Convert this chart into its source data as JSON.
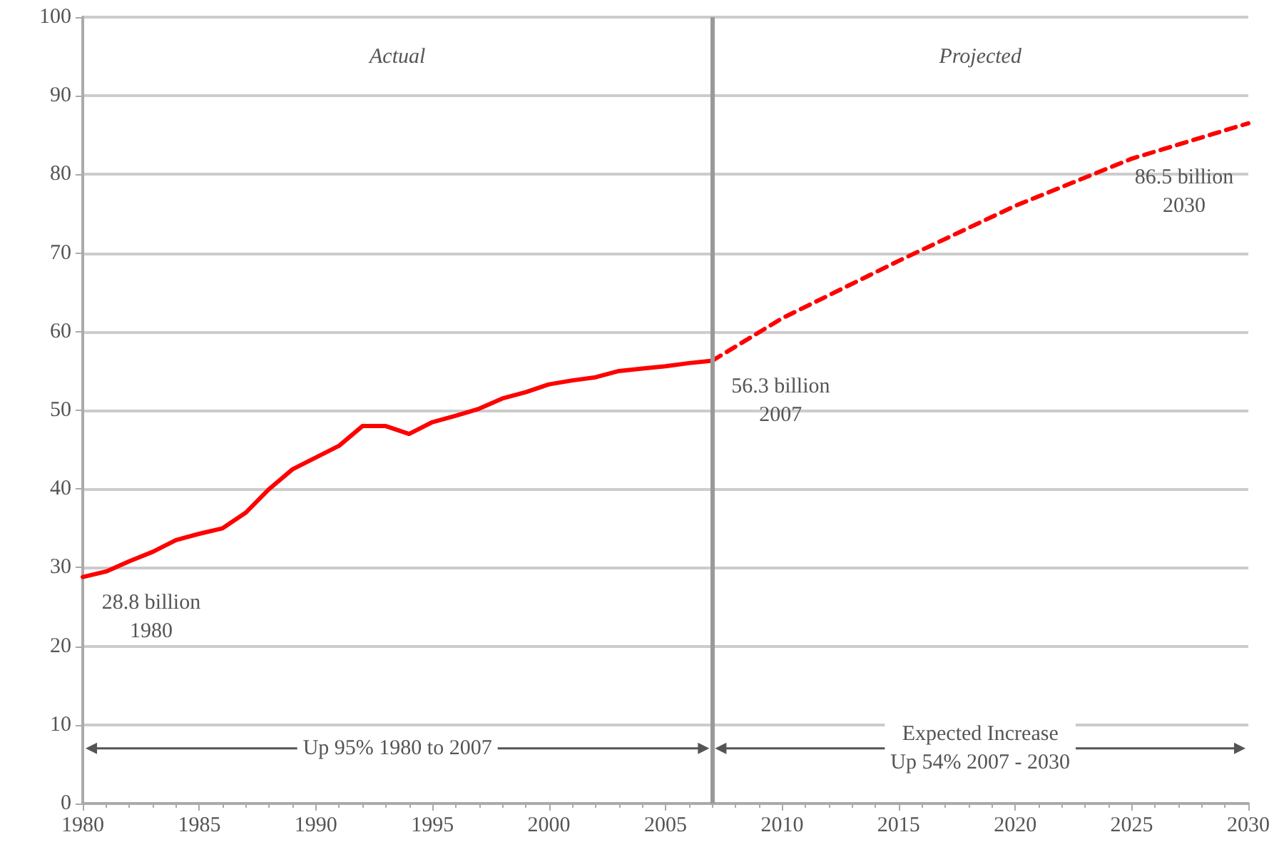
{
  "chart_data": {
    "type": "line",
    "series": [
      {
        "color": "#ff0000",
        "line_style": "solid",
        "x": [
          1980,
          1981,
          1982,
          1983,
          1984,
          1985,
          1986,
          1987,
          1988,
          1989,
          1990,
          1991,
          1992,
          1993,
          1994,
          1995,
          1996,
          1997,
          1998,
          1999,
          2000,
          2001,
          2002,
          2003,
          2004,
          2005,
          2006,
          2007
        ],
        "values": [
          28.8,
          29.5,
          30.8,
          32,
          33.5,
          34.3,
          35,
          37,
          40,
          42.5,
          44,
          45.5,
          48,
          48,
          47,
          48.5,
          49.3,
          50.2,
          51.5,
          52.3,
          53.3,
          53.8,
          54.2,
          55,
          55.3,
          55.6,
          56,
          56.3
        ]
      },
      {
        "color": "#ff0000",
        "line_style": "dashed",
        "x": [
          2007,
          2010,
          2015,
          2020,
          2025,
          2030
        ],
        "values": [
          56.3,
          61.7,
          69,
          76,
          82,
          86.5
        ]
      }
    ],
    "xlim": [
      1980,
      2030
    ],
    "xticks": [
      1980,
      1985,
      1990,
      1995,
      2000,
      2005,
      2010,
      2015,
      2020,
      2025,
      2030
    ],
    "ylim": [
      0,
      100
    ],
    "yticks": [
      0,
      10,
      20,
      30,
      40,
      50,
      60,
      70,
      80,
      90,
      100
    ],
    "grid": "y",
    "marker": "none",
    "ref_lines": [
      {
        "axis": "x",
        "value": 2007,
        "color": "#999999"
      }
    ],
    "annotations": [
      "Actual",
      "Projected",
      "Up 95% 1980 to 2007",
      "Expected Increase\nUp 54% 2007 - 2030",
      {
        "text": "28.8 billion\n1980",
        "x": 1980,
        "y": 28.8
      },
      {
        "text": "56.3 billion\n2007",
        "x": 2007,
        "y": 56.3
      },
      {
        "text": "86.5 billion\n2030",
        "x": 2030,
        "y": 86.5
      }
    ]
  }
}
